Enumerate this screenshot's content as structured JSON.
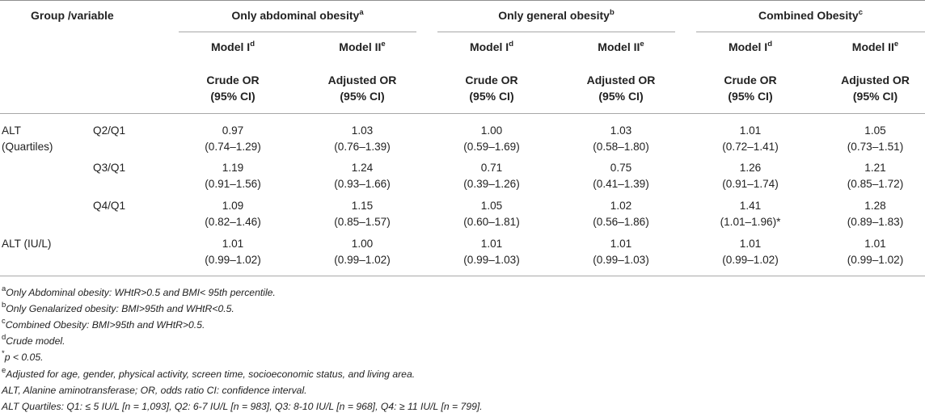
{
  "header": {
    "group_label": "Group /variable",
    "groups": [
      {
        "label": "Only abdominal obesity",
        "sup": "a"
      },
      {
        "label": "Only general obesity",
        "sup": "b"
      },
      {
        "label": "Combined Obesity",
        "sup": "c"
      }
    ],
    "models": [
      {
        "label": "Model I",
        "sup": "d"
      },
      {
        "label": "Model II",
        "sup": "e"
      }
    ],
    "or_labels": [
      {
        "line1": "Crude OR",
        "line2": "(95% CI)"
      },
      {
        "line1": "Adjusted OR",
        "line2": "(95% CI)"
      }
    ]
  },
  "rows": [
    {
      "variable": "ALT",
      "variable2": "(Quartiles)",
      "quartile": "Q2/Q1",
      "values": [
        {
          "or": "0.97",
          "ci": "(0.74–1.29)"
        },
        {
          "or": "1.03",
          "ci": "(0.76–1.39)"
        },
        {
          "or": "1.00",
          "ci": "(0.59–1.69)"
        },
        {
          "or": "1.03",
          "ci": "(0.58–1.80)"
        },
        {
          "or": "1.01",
          "ci": "(0.72–1.41)"
        },
        {
          "or": "1.05",
          "ci": "(0.73–1.51)"
        }
      ]
    },
    {
      "variable": "",
      "variable2": "",
      "quartile": "Q3/Q1",
      "values": [
        {
          "or": "1.19",
          "ci": "(0.91–1.56)"
        },
        {
          "or": "1.24",
          "ci": "(0.93–1.66)"
        },
        {
          "or": "0.71",
          "ci": "(0.39–1.26)"
        },
        {
          "or": "0.75",
          "ci": "(0.41–1.39)"
        },
        {
          "or": "1.26",
          "ci": "(0.91–1.74)"
        },
        {
          "or": "1.21",
          "ci": "(0.85–1.72)"
        }
      ]
    },
    {
      "variable": "",
      "variable2": "",
      "quartile": "Q4/Q1",
      "values": [
        {
          "or": "1.09",
          "ci": "(0.82–1.46)"
        },
        {
          "or": "1.15",
          "ci": "(0.85–1.57)"
        },
        {
          "or": "1.05",
          "ci": "(0.60–1.81)"
        },
        {
          "or": "1.02",
          "ci": "(0.56–1.86)"
        },
        {
          "or": "1.41",
          "ci": "(1.01–1.96)*"
        },
        {
          "or": "1.28",
          "ci": "(0.89–1.83)"
        }
      ]
    },
    {
      "variable": "ALT (IU/L)",
      "variable2": "",
      "quartile": "",
      "values": [
        {
          "or": "1.01",
          "ci": "(0.99–1.02)"
        },
        {
          "or": "1.00",
          "ci": "(0.99–1.02)"
        },
        {
          "or": "1.01",
          "ci": "(0.99–1.03)"
        },
        {
          "or": "1.01",
          "ci": "(0.99–1.03)"
        },
        {
          "or": "1.01",
          "ci": "(0.99–1.02)"
        },
        {
          "or": "1.01",
          "ci": "(0.99–1.02)"
        }
      ]
    }
  ],
  "footnotes": [
    {
      "sup": "a",
      "text": "Only Abdominal obesity: WHtR>0.5 and BMI< 95th percentile."
    },
    {
      "sup": "b",
      "text": "Only Genalarized obesity: BMI>95th and WHtR<0.5."
    },
    {
      "sup": "c",
      "text": "Combined Obesity: BMI>95th and WHtR>0.5."
    },
    {
      "sup": "d",
      "text": "Crude model."
    },
    {
      "sup": "*",
      "text": "p < 0.05."
    },
    {
      "sup": "e",
      "text": "Adjusted for age, gender, physical activity, screen time, socioeconomic status, and living area."
    },
    {
      "sup": "",
      "text": "ALT, Alanine aminotransferase; OR, odds ratio CI: confidence interval."
    },
    {
      "sup": "",
      "text": "ALT Quartiles: Q1: ≤ 5 IU/L [n = 1,093], Q2: 6-7 IU/L [n = 983], Q3: 8-10 IU/L [n = 968], Q4: ≥ 11 IU/L [n = 799]."
    }
  ]
}
